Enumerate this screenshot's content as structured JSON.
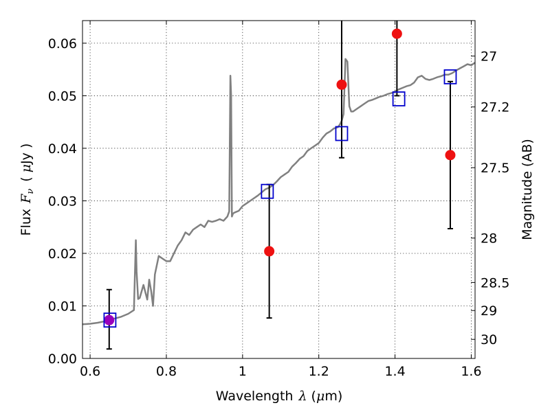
{
  "chart_data": {
    "type": "scatter",
    "title": "",
    "xlabel": {
      "text": "Wavelength",
      "symbol": "λ",
      "unit_open": "(",
      "unit_mu": "μ",
      "unit_rest": "m)"
    },
    "ylabel": {
      "text": "Flux",
      "symbol": "F",
      "sub": "ν",
      "unit_open": "(",
      "unit_mu": "μ",
      "unit_rest": "Jy )"
    },
    "ylabel_right": "Magnitude (AB)",
    "xlim": [
      0.58,
      1.61
    ],
    "ylim": [
      0.0,
      0.0643
    ],
    "x_ticks": [
      0.6,
      0.8,
      1.0,
      1.2,
      1.4,
      1.6
    ],
    "x_tick_labels": [
      "0.6",
      "0.8",
      "1",
      "1.2",
      "1.4",
      "1.6"
    ],
    "y_ticks": [
      0.0,
      0.01,
      0.02,
      0.03,
      0.04,
      0.05,
      0.06
    ],
    "y_tick_labels": [
      "0.00",
      "0.01",
      "0.02",
      "0.03",
      "0.04",
      "0.05",
      "0.06"
    ],
    "right_ticks": [
      27,
      27.2,
      27.5,
      28,
      28.5,
      29,
      30
    ],
    "right_tick_labels": [
      "27",
      "27.2",
      "27.5",
      "28",
      "28.5",
      "29",
      "30"
    ],
    "grid": true,
    "colors": {
      "model": "#808080",
      "observed": "#ee1111",
      "synthetic": "#0000cc",
      "errorbar": "#000000",
      "overlap": "#9900bb"
    },
    "model_spectrum": {
      "x": [
        0.58,
        0.6,
        0.62,
        0.64,
        0.66,
        0.68,
        0.7,
        0.715,
        0.72,
        0.722,
        0.726,
        0.73,
        0.74,
        0.75,
        0.755,
        0.76,
        0.765,
        0.77,
        0.78,
        0.79,
        0.8,
        0.81,
        0.82,
        0.83,
        0.84,
        0.85,
        0.86,
        0.87,
        0.88,
        0.89,
        0.9,
        0.91,
        0.92,
        0.93,
        0.94,
        0.95,
        0.96,
        0.965,
        0.968,
        0.97,
        0.972,
        0.975,
        0.98,
        0.99,
        1.0,
        1.01,
        1.02,
        1.03,
        1.04,
        1.05,
        1.06,
        1.07,
        1.08,
        1.09,
        1.1,
        1.11,
        1.12,
        1.13,
        1.14,
        1.15,
        1.16,
        1.17,
        1.18,
        1.19,
        1.2,
        1.21,
        1.22,
        1.23,
        1.24,
        1.25,
        1.255,
        1.26,
        1.265,
        1.27,
        1.275,
        1.28,
        1.285,
        1.29,
        1.3,
        1.31,
        1.32,
        1.33,
        1.34,
        1.35,
        1.36,
        1.37,
        1.38,
        1.39,
        1.4,
        1.41,
        1.42,
        1.43,
        1.44,
        1.45,
        1.46,
        1.47,
        1.48,
        1.49,
        1.5,
        1.51,
        1.52,
        1.53,
        1.54,
        1.55,
        1.56,
        1.57,
        1.58,
        1.59,
        1.6,
        1.61
      ],
      "y": [
        0.0065,
        0.0066,
        0.0068,
        0.0071,
        0.0075,
        0.0079,
        0.0085,
        0.0092,
        0.0225,
        0.0165,
        0.0113,
        0.0115,
        0.014,
        0.0112,
        0.015,
        0.0129,
        0.01,
        0.016,
        0.0195,
        0.019,
        0.0185,
        0.0185,
        0.02,
        0.0215,
        0.0225,
        0.024,
        0.0235,
        0.0245,
        0.025,
        0.0255,
        0.025,
        0.0262,
        0.026,
        0.0262,
        0.0265,
        0.0262,
        0.027,
        0.028,
        0.0538,
        0.05,
        0.027,
        0.0276,
        0.0278,
        0.0281,
        0.029,
        0.0295,
        0.03,
        0.0305,
        0.031,
        0.0316,
        0.0322,
        0.0325,
        0.033,
        0.0337,
        0.0345,
        0.035,
        0.0355,
        0.0365,
        0.0372,
        0.038,
        0.0385,
        0.0395,
        0.04,
        0.0405,
        0.041,
        0.042,
        0.0428,
        0.0432,
        0.0438,
        0.044,
        0.0445,
        0.0452,
        0.0465,
        0.057,
        0.0565,
        0.048,
        0.047,
        0.047,
        0.0475,
        0.048,
        0.0485,
        0.049,
        0.0492,
        0.0495,
        0.0498,
        0.05,
        0.0503,
        0.0505,
        0.0508,
        0.0512,
        0.0515,
        0.0518,
        0.052,
        0.0525,
        0.0535,
        0.0538,
        0.0532,
        0.053,
        0.0532,
        0.0535,
        0.0537,
        0.054,
        0.054,
        0.0543,
        0.0548,
        0.0552,
        0.0556,
        0.056,
        0.0558,
        0.0563
      ]
    },
    "observed": [
      {
        "x": 0.65,
        "y": 0.0073,
        "yerr_low": 0.0018,
        "yerr_high": 0.0131
      },
      {
        "x": 1.07,
        "y": 0.0204,
        "yerr_low": 0.0077,
        "yerr_high": 0.0331
      },
      {
        "x": 1.26,
        "y": 0.0521,
        "yerr_low": 0.0382,
        "yerr_high": 0.066
      },
      {
        "x": 1.405,
        "y": 0.0618,
        "yerr_low": 0.05,
        "yerr_high": 0.066
      },
      {
        "x": 1.545,
        "y": 0.0387,
        "yerr_low": 0.0247,
        "yerr_high": 0.0527
      }
    ],
    "synthetic": [
      {
        "x": 0.652,
        "y": 0.0073
      },
      {
        "x": 1.065,
        "y": 0.0318
      },
      {
        "x": 1.26,
        "y": 0.0428
      },
      {
        "x": 1.41,
        "y": 0.0494
      },
      {
        "x": 1.545,
        "y": 0.0536
      }
    ]
  }
}
